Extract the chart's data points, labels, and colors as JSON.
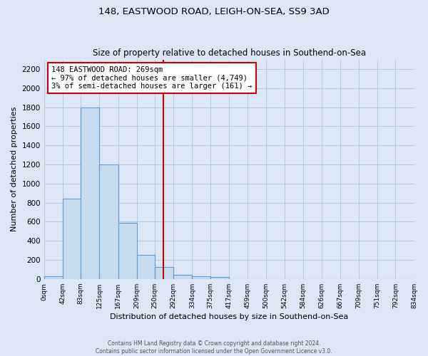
{
  "title": "148, EASTWOOD ROAD, LEIGH-ON-SEA, SS9 3AD",
  "subtitle": "Size of property relative to detached houses in Southend-on-Sea",
  "xlabel": "Distribution of detached houses by size in Southend-on-Sea",
  "ylabel": "Number of detached properties",
  "bin_edges": [
    0,
    42,
    83,
    125,
    167,
    209,
    250,
    292,
    334,
    375,
    417,
    459,
    500,
    542,
    584,
    626,
    667,
    709,
    751,
    792,
    834
  ],
  "bar_heights": [
    25,
    840,
    1800,
    1200,
    590,
    255,
    125,
    40,
    25,
    20,
    0,
    0,
    0,
    0,
    0,
    0,
    0,
    0,
    0,
    0
  ],
  "bar_color": "#c8dcf0",
  "bar_edge_color": "#5b9bd5",
  "bar_linewidth": 0.8,
  "property_line_x": 269,
  "property_line_color": "#cc0000",
  "annotation_text": "148 EASTWOOD ROAD: 269sqm\n← 97% of detached houses are smaller (4,749)\n3% of semi-detached houses are larger (161) →",
  "annotation_box_color": "#ffffff",
  "annotation_box_edge": "#cc0000",
  "ylim": [
    0,
    2300
  ],
  "yticks": [
    0,
    200,
    400,
    600,
    800,
    1000,
    1200,
    1400,
    1600,
    1800,
    2000,
    2200
  ],
  "tick_labels": [
    "0sqm",
    "42sqm",
    "83sqm",
    "125sqm",
    "167sqm",
    "209sqm",
    "250sqm",
    "292sqm",
    "334sqm",
    "375sqm",
    "417sqm",
    "459sqm",
    "500sqm",
    "542sqm",
    "584sqm",
    "626sqm",
    "667sqm",
    "709sqm",
    "751sqm",
    "792sqm",
    "834sqm"
  ],
  "footer_line1": "Contains HM Land Registry data © Crown copyright and database right 2024.",
  "footer_line2": "Contains public sector information licensed under the Open Government Licence v3.0.",
  "bg_color": "#dce6f5",
  "plot_bg_color": "#dce6f5",
  "grid_color": "#b8c8dc"
}
